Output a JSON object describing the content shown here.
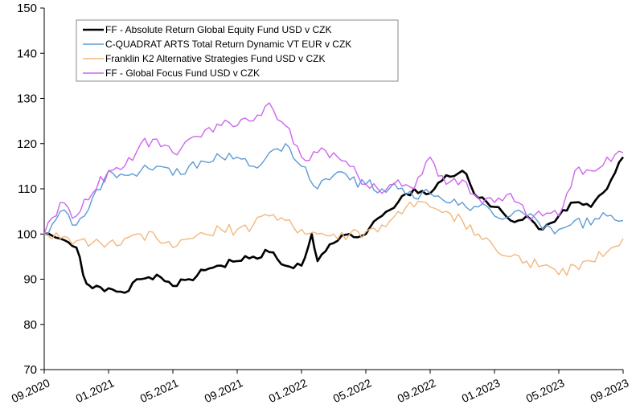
{
  "chart_data": {
    "type": "line",
    "title": "",
    "xlabel": "",
    "ylabel": "",
    "ylim": [
      70,
      150
    ],
    "y_ticks": [
      70,
      80,
      90,
      100,
      110,
      120,
      130,
      140,
      150
    ],
    "x_range": [
      "2020-09",
      "2023-09"
    ],
    "x_ticks": [
      "09.2020",
      "01.2021",
      "05.2021",
      "09.2021",
      "01.2022",
      "05.2022",
      "09.2022",
      "01.2023",
      "05.2023",
      "09.2023"
    ],
    "grid": false,
    "legend_position": "top",
    "series": [
      {
        "name": "FF - Absolute Return Global Equity Fund USD v CZK",
        "color": "#000000",
        "points": [
          [
            "2020-09",
            100
          ],
          [
            "2020-10",
            99
          ],
          [
            "2020-11",
            97
          ],
          [
            "2020-11-20",
            89
          ],
          [
            "2020-12",
            88
          ],
          [
            "2021-01",
            88
          ],
          [
            "2021-02",
            87
          ],
          [
            "2021-03",
            90
          ],
          [
            "2021-04",
            91
          ],
          [
            "2021-05",
            88.5
          ],
          [
            "2021-06",
            90
          ],
          [
            "2021-07",
            92
          ],
          [
            "2021-08",
            93
          ],
          [
            "2021-09",
            94
          ],
          [
            "2021-10",
            95
          ],
          [
            "2021-11",
            96
          ],
          [
            "2021-12",
            93
          ],
          [
            "2022-01",
            93
          ],
          [
            "2022-01-20",
            100
          ],
          [
            "2022-02",
            94
          ],
          [
            "2022-03",
            98
          ],
          [
            "2022-04",
            100
          ],
          [
            "2022-05",
            100
          ],
          [
            "2022-06",
            104
          ],
          [
            "2022-07",
            107
          ],
          [
            "2022-08",
            110
          ],
          [
            "2022-09",
            109
          ],
          [
            "2022-10",
            113
          ],
          [
            "2022-11",
            114
          ],
          [
            "2022-12",
            108
          ],
          [
            "2023-01",
            106
          ],
          [
            "2023-02",
            103
          ],
          [
            "2023-03",
            104
          ],
          [
            "2023-04",
            101
          ],
          [
            "2023-05",
            104
          ],
          [
            "2023-06",
            107
          ],
          [
            "2023-07",
            106
          ],
          [
            "2023-08",
            110
          ],
          [
            "2023-09",
            117
          ]
        ]
      },
      {
        "name": "C-QUADRAT ARTS Total Return Dynamic VT EUR v CZK",
        "color": "#5b9bd5",
        "points": [
          [
            "2020-09",
            100
          ],
          [
            "2020-10",
            105
          ],
          [
            "2020-11",
            102
          ],
          [
            "2020-12",
            108
          ],
          [
            "2021-01",
            114
          ],
          [
            "2021-02",
            113
          ],
          [
            "2021-03",
            114
          ],
          [
            "2021-04",
            115
          ],
          [
            "2021-05",
            113
          ],
          [
            "2021-06",
            115
          ],
          [
            "2021-07",
            116
          ],
          [
            "2021-08",
            117
          ],
          [
            "2021-09",
            117
          ],
          [
            "2021-10",
            115
          ],
          [
            "2021-11",
            118
          ],
          [
            "2021-12",
            120
          ],
          [
            "2022-01",
            115
          ],
          [
            "2022-02",
            110
          ],
          [
            "2022-03",
            113
          ],
          [
            "2022-04",
            112
          ],
          [
            "2022-05",
            111
          ],
          [
            "2022-06",
            110
          ],
          [
            "2022-07",
            110
          ],
          [
            "2022-08",
            108
          ],
          [
            "2022-09",
            109
          ],
          [
            "2022-10",
            107
          ],
          [
            "2022-11",
            107
          ],
          [
            "2022-12",
            106
          ],
          [
            "2023-01",
            104
          ],
          [
            "2023-02",
            104
          ],
          [
            "2023-03",
            104
          ],
          [
            "2023-04",
            101
          ],
          [
            "2023-05",
            101
          ],
          [
            "2023-06",
            103
          ],
          [
            "2023-07",
            102
          ],
          [
            "2023-08",
            104
          ],
          [
            "2023-09",
            103
          ]
        ]
      },
      {
        "name": "Franklin K2 Alternative Strategies Fund USD v CZK",
        "color": "#f2b77e",
        "points": [
          [
            "2020-09",
            100
          ],
          [
            "2020-10",
            99
          ],
          [
            "2020-11",
            98.5
          ],
          [
            "2020-12",
            98
          ],
          [
            "2021-01",
            98
          ],
          [
            "2021-02",
            99
          ],
          [
            "2021-03",
            100
          ],
          [
            "2021-04",
            99
          ],
          [
            "2021-05",
            97
          ],
          [
            "2021-06",
            99
          ],
          [
            "2021-07",
            100
          ],
          [
            "2021-08",
            101
          ],
          [
            "2021-09",
            101
          ],
          [
            "2021-10",
            102
          ],
          [
            "2021-11",
            104
          ],
          [
            "2021-12",
            103
          ],
          [
            "2022-01",
            101
          ],
          [
            "2022-02",
            100
          ],
          [
            "2022-03",
            100
          ],
          [
            "2022-04",
            100
          ],
          [
            "2022-05",
            100.5
          ],
          [
            "2022-06",
            102
          ],
          [
            "2022-07",
            105
          ],
          [
            "2022-08",
            106
          ],
          [
            "2022-09",
            106
          ],
          [
            "2022-10",
            105
          ],
          [
            "2022-11",
            103
          ],
          [
            "2022-12",
            100
          ],
          [
            "2023-01",
            97
          ],
          [
            "2023-02",
            95
          ],
          [
            "2023-03",
            94
          ],
          [
            "2023-04",
            93
          ],
          [
            "2023-05",
            91
          ],
          [
            "2023-06",
            93
          ],
          [
            "2023-07",
            94
          ],
          [
            "2023-08",
            96
          ],
          [
            "2023-09",
            99
          ]
        ]
      },
      {
        "name": "FF - Global Focus Fund USD v CZK",
        "color": "#cc66ee",
        "points": [
          [
            "2020-09",
            100
          ],
          [
            "2020-10",
            107
          ],
          [
            "2020-11",
            104
          ],
          [
            "2020-12",
            109
          ],
          [
            "2021-01",
            114
          ],
          [
            "2021-02",
            115
          ],
          [
            "2021-03",
            120
          ],
          [
            "2021-04",
            121
          ],
          [
            "2021-05",
            118
          ],
          [
            "2021-06",
            121
          ],
          [
            "2021-07",
            123
          ],
          [
            "2021-08",
            124
          ],
          [
            "2021-09",
            124
          ],
          [
            "2021-10",
            125
          ],
          [
            "2021-11",
            129
          ],
          [
            "2021-12",
            124
          ],
          [
            "2022-01",
            117
          ],
          [
            "2022-02",
            118
          ],
          [
            "2022-03",
            118
          ],
          [
            "2022-04",
            115
          ],
          [
            "2022-05",
            111
          ],
          [
            "2022-06",
            109
          ],
          [
            "2022-07",
            112
          ],
          [
            "2022-08",
            110
          ],
          [
            "2022-09",
            117
          ],
          [
            "2022-10",
            111
          ],
          [
            "2022-11",
            112
          ],
          [
            "2022-12",
            108
          ],
          [
            "2023-01",
            107
          ],
          [
            "2023-02",
            109
          ],
          [
            "2023-03",
            104
          ],
          [
            "2023-04",
            104
          ],
          [
            "2023-05",
            104
          ],
          [
            "2023-06",
            114
          ],
          [
            "2023-07",
            114
          ],
          [
            "2023-08",
            117
          ],
          [
            "2023-09",
            118
          ]
        ]
      }
    ]
  }
}
